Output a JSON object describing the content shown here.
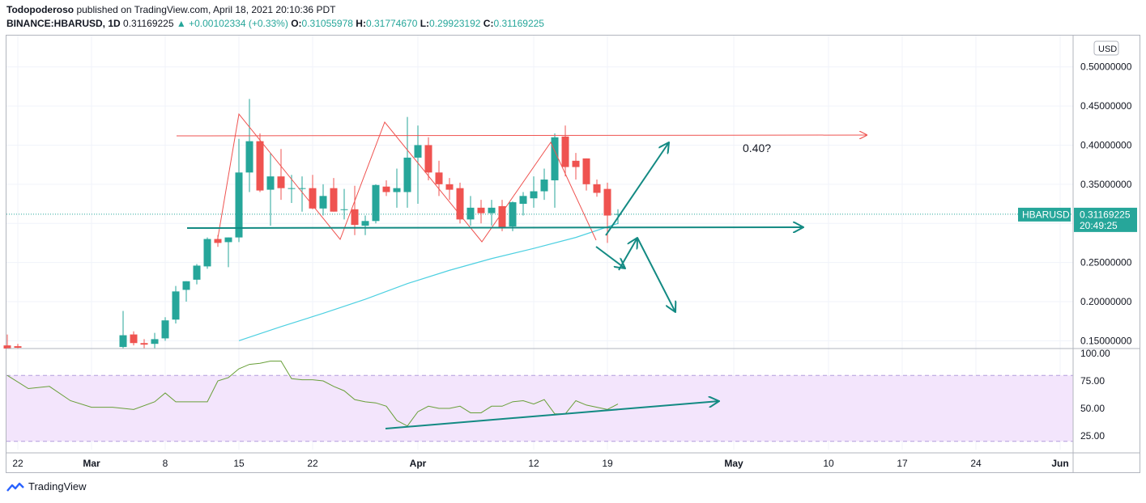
{
  "header": {
    "author": "Todopoderoso",
    "published_text": "published on TradingView.com, April 18, 2021 20:10:36 PDT",
    "symbol": "BINANCE:HBARUSD, 1D",
    "last": "0.31169225",
    "change": "▲ +0.00102334 (+0.33%)",
    "open_label": "O:",
    "open": "0.31055978",
    "high_label": "H:",
    "high": "0.31774670",
    "low_label": "L:",
    "low": "0.29923192",
    "close_label": "C:",
    "close": "0.31169225"
  },
  "footer": {
    "brand": "TradingView"
  },
  "colors": {
    "up": "#26a69a",
    "down": "#ef5350",
    "ma": "#4dd0e1",
    "rsi": "#689f38",
    "rsi_band": "#f3e5fc",
    "draw_red": "#ef5350",
    "draw_teal": "#138a83",
    "grid": "#f0f3fa"
  },
  "chart_data": {
    "type": "candlestick",
    "currency_label": "USD",
    "price_axis_ticks": [
      "0.50000000",
      "0.45000000",
      "0.40000000",
      "0.35000000",
      "0.25000000",
      "0.20000000",
      "0.15000000"
    ],
    "ylim": [
      0.14,
      0.54
    ],
    "x_ticks": [
      {
        "day": -7,
        "label": "22"
      },
      {
        "day": 0,
        "label": "Mar"
      },
      {
        "day": 7,
        "label": "8"
      },
      {
        "day": 14,
        "label": "15"
      },
      {
        "day": 21,
        "label": "22"
      },
      {
        "day": 31,
        "label": "Apr"
      },
      {
        "day": 42,
        "label": "12"
      },
      {
        "day": 49,
        "label": "19"
      },
      {
        "day": 61,
        "label": "May"
      },
      {
        "day": 70,
        "label": "10"
      },
      {
        "day": 77,
        "label": "17"
      },
      {
        "day": 84,
        "label": "24"
      },
      {
        "day": 92,
        "label": "Jun"
      }
    ],
    "candles": [
      {
        "d": -8,
        "o": 0.144,
        "h": 0.158,
        "l": 0.138,
        "c": 0.14
      },
      {
        "d": -7,
        "o": 0.143,
        "h": 0.146,
        "l": 0.138,
        "c": 0.141
      },
      {
        "d": 3,
        "o": 0.142,
        "h": 0.188,
        "l": 0.14,
        "c": 0.157
      },
      {
        "d": 4,
        "o": 0.158,
        "h": 0.162,
        "l": 0.144,
        "c": 0.147
      },
      {
        "d": 5,
        "o": 0.147,
        "h": 0.152,
        "l": 0.14,
        "c": 0.145
      },
      {
        "d": 6,
        "o": 0.146,
        "h": 0.16,
        "l": 0.14,
        "c": 0.152
      },
      {
        "d": 7,
        "o": 0.153,
        "h": 0.18,
        "l": 0.15,
        "c": 0.176
      },
      {
        "d": 8,
        "o": 0.177,
        "h": 0.22,
        "l": 0.172,
        "c": 0.213
      },
      {
        "d": 9,
        "o": 0.215,
        "h": 0.226,
        "l": 0.2,
        "c": 0.226
      },
      {
        "d": 10,
        "o": 0.228,
        "h": 0.248,
        "l": 0.222,
        "c": 0.246
      },
      {
        "d": 11,
        "o": 0.245,
        "h": 0.282,
        "l": 0.242,
        "c": 0.28
      },
      {
        "d": 12,
        "o": 0.28,
        "h": 0.285,
        "l": 0.27,
        "c": 0.275
      },
      {
        "d": 13,
        "o": 0.276,
        "h": 0.282,
        "l": 0.244,
        "c": 0.282
      },
      {
        "d": 14,
        "o": 0.282,
        "h": 0.408,
        "l": 0.276,
        "c": 0.365
      },
      {
        "d": 15,
        "o": 0.365,
        "h": 0.459,
        "l": 0.34,
        "c": 0.405
      },
      {
        "d": 16,
        "o": 0.405,
        "h": 0.415,
        "l": 0.34,
        "c": 0.342
      },
      {
        "d": 17,
        "o": 0.343,
        "h": 0.39,
        "l": 0.297,
        "c": 0.36
      },
      {
        "d": 18,
        "o": 0.36,
        "h": 0.395,
        "l": 0.33,
        "c": 0.345
      },
      {
        "d": 19,
        "o": 0.345,
        "h": 0.362,
        "l": 0.326,
        "c": 0.345
      },
      {
        "d": 20,
        "o": 0.345,
        "h": 0.36,
        "l": 0.315,
        "c": 0.345
      },
      {
        "d": 21,
        "o": 0.345,
        "h": 0.362,
        "l": 0.318,
        "c": 0.319
      },
      {
        "d": 22,
        "o": 0.319,
        "h": 0.35,
        "l": 0.31,
        "c": 0.335
      },
      {
        "d": 23,
        "o": 0.345,
        "h": 0.358,
        "l": 0.315,
        "c": 0.315
      },
      {
        "d": 24,
        "o": 0.318,
        "h": 0.344,
        "l": 0.305,
        "c": 0.318
      },
      {
        "d": 25,
        "o": 0.318,
        "h": 0.348,
        "l": 0.285,
        "c": 0.298
      },
      {
        "d": 26,
        "o": 0.297,
        "h": 0.31,
        "l": 0.285,
        "c": 0.303
      },
      {
        "d": 27,
        "o": 0.303,
        "h": 0.35,
        "l": 0.3,
        "c": 0.349
      },
      {
        "d": 28,
        "o": 0.347,
        "h": 0.355,
        "l": 0.335,
        "c": 0.34
      },
      {
        "d": 29,
        "o": 0.34,
        "h": 0.37,
        "l": 0.32,
        "c": 0.345
      },
      {
        "d": 30,
        "o": 0.34,
        "h": 0.436,
        "l": 0.32,
        "c": 0.384
      },
      {
        "d": 31,
        "o": 0.384,
        "h": 0.425,
        "l": 0.325,
        "c": 0.4
      },
      {
        "d": 32,
        "o": 0.4,
        "h": 0.41,
        "l": 0.355,
        "c": 0.365
      },
      {
        "d": 33,
        "o": 0.365,
        "h": 0.38,
        "l": 0.335,
        "c": 0.35
      },
      {
        "d": 34,
        "o": 0.35,
        "h": 0.358,
        "l": 0.33,
        "c": 0.343
      },
      {
        "d": 35,
        "o": 0.345,
        "h": 0.352,
        "l": 0.3,
        "c": 0.305
      },
      {
        "d": 36,
        "o": 0.305,
        "h": 0.335,
        "l": 0.297,
        "c": 0.32
      },
      {
        "d": 37,
        "o": 0.32,
        "h": 0.33,
        "l": 0.3,
        "c": 0.313
      },
      {
        "d": 38,
        "o": 0.313,
        "h": 0.33,
        "l": 0.297,
        "c": 0.32
      },
      {
        "d": 39,
        "o": 0.322,
        "h": 0.33,
        "l": 0.29,
        "c": 0.295
      },
      {
        "d": 40,
        "o": 0.296,
        "h": 0.328,
        "l": 0.29,
        "c": 0.327
      },
      {
        "d": 41,
        "o": 0.325,
        "h": 0.34,
        "l": 0.31,
        "c": 0.335
      },
      {
        "d": 42,
        "o": 0.332,
        "h": 0.36,
        "l": 0.32,
        "c": 0.341
      },
      {
        "d": 43,
        "o": 0.341,
        "h": 0.37,
        "l": 0.33,
        "c": 0.356
      },
      {
        "d": 44,
        "o": 0.355,
        "h": 0.415,
        "l": 0.32,
        "c": 0.41
      },
      {
        "d": 45,
        "o": 0.411,
        "h": 0.425,
        "l": 0.36,
        "c": 0.372
      },
      {
        "d": 46,
        "o": 0.38,
        "h": 0.39,
        "l": 0.356,
        "c": 0.372
      },
      {
        "d": 47,
        "o": 0.383,
        "h": 0.383,
        "l": 0.342,
        "c": 0.35
      },
      {
        "d": 48,
        "o": 0.35,
        "h": 0.356,
        "l": 0.334,
        "c": 0.339
      },
      {
        "d": 49,
        "o": 0.344,
        "h": 0.352,
        "l": 0.275,
        "c": 0.31
      },
      {
        "d": 50,
        "o": 0.311,
        "h": 0.318,
        "l": 0.299,
        "c": 0.312
      }
    ],
    "moving_average": [
      {
        "d": 14,
        "v": 0.15
      },
      {
        "d": 18,
        "v": 0.168
      },
      {
        "d": 22,
        "v": 0.185
      },
      {
        "d": 26,
        "v": 0.203
      },
      {
        "d": 30,
        "v": 0.223
      },
      {
        "d": 34,
        "v": 0.24
      },
      {
        "d": 38,
        "v": 0.255
      },
      {
        "d": 42,
        "v": 0.268
      },
      {
        "d": 46,
        "v": 0.282
      },
      {
        "d": 50,
        "v": 0.3
      }
    ],
    "last_price_label": {
      "symbol": "HBARUSD",
      "price": "0.31169225",
      "countdown": "20:49:25"
    },
    "annotation": "0.40?",
    "rsi": {
      "ticks": [
        "100.00",
        "75.00",
        "50.00",
        "25.00"
      ],
      "upper": 80,
      "lower": 20,
      "values": [
        {
          "d": -8,
          "v": 80
        },
        {
          "d": -6,
          "v": 68
        },
        {
          "d": -4,
          "v": 70
        },
        {
          "d": -2,
          "v": 57
        },
        {
          "d": 0,
          "v": 51
        },
        {
          "d": 2,
          "v": 51
        },
        {
          "d": 4,
          "v": 49
        },
        {
          "d": 6,
          "v": 56
        },
        {
          "d": 7,
          "v": 64
        },
        {
          "d": 8,
          "v": 56
        },
        {
          "d": 11,
          "v": 56
        },
        {
          "d": 12,
          "v": 75
        },
        {
          "d": 13,
          "v": 78
        },
        {
          "d": 14,
          "v": 86
        },
        {
          "d": 15,
          "v": 90
        },
        {
          "d": 16,
          "v": 91
        },
        {
          "d": 17,
          "v": 93
        },
        {
          "d": 18,
          "v": 93
        },
        {
          "d": 19,
          "v": 77
        },
        {
          "d": 20,
          "v": 76
        },
        {
          "d": 21,
          "v": 76
        },
        {
          "d": 22,
          "v": 75
        },
        {
          "d": 23,
          "v": 70
        },
        {
          "d": 24,
          "v": 66
        },
        {
          "d": 25,
          "v": 58
        },
        {
          "d": 26,
          "v": 56
        },
        {
          "d": 27,
          "v": 55
        },
        {
          "d": 28,
          "v": 52
        },
        {
          "d": 29,
          "v": 39
        },
        {
          "d": 30,
          "v": 34
        },
        {
          "d": 31,
          "v": 47
        },
        {
          "d": 32,
          "v": 52
        },
        {
          "d": 33,
          "v": 50
        },
        {
          "d": 34,
          "v": 50
        },
        {
          "d": 35,
          "v": 52
        },
        {
          "d": 36,
          "v": 46
        },
        {
          "d": 37,
          "v": 46
        },
        {
          "d": 38,
          "v": 52
        },
        {
          "d": 39,
          "v": 52
        },
        {
          "d": 40,
          "v": 56
        },
        {
          "d": 41,
          "v": 57
        },
        {
          "d": 42,
          "v": 54
        },
        {
          "d": 43,
          "v": 58
        },
        {
          "d": 44,
          "v": 45
        },
        {
          "d": 45,
          "v": 45
        },
        {
          "d": 46,
          "v": 57
        },
        {
          "d": 47,
          "v": 53
        },
        {
          "d": 48,
          "v": 51
        },
        {
          "d": 49,
          "v": 49
        },
        {
          "d": 50,
          "v": 54
        }
      ]
    }
  }
}
